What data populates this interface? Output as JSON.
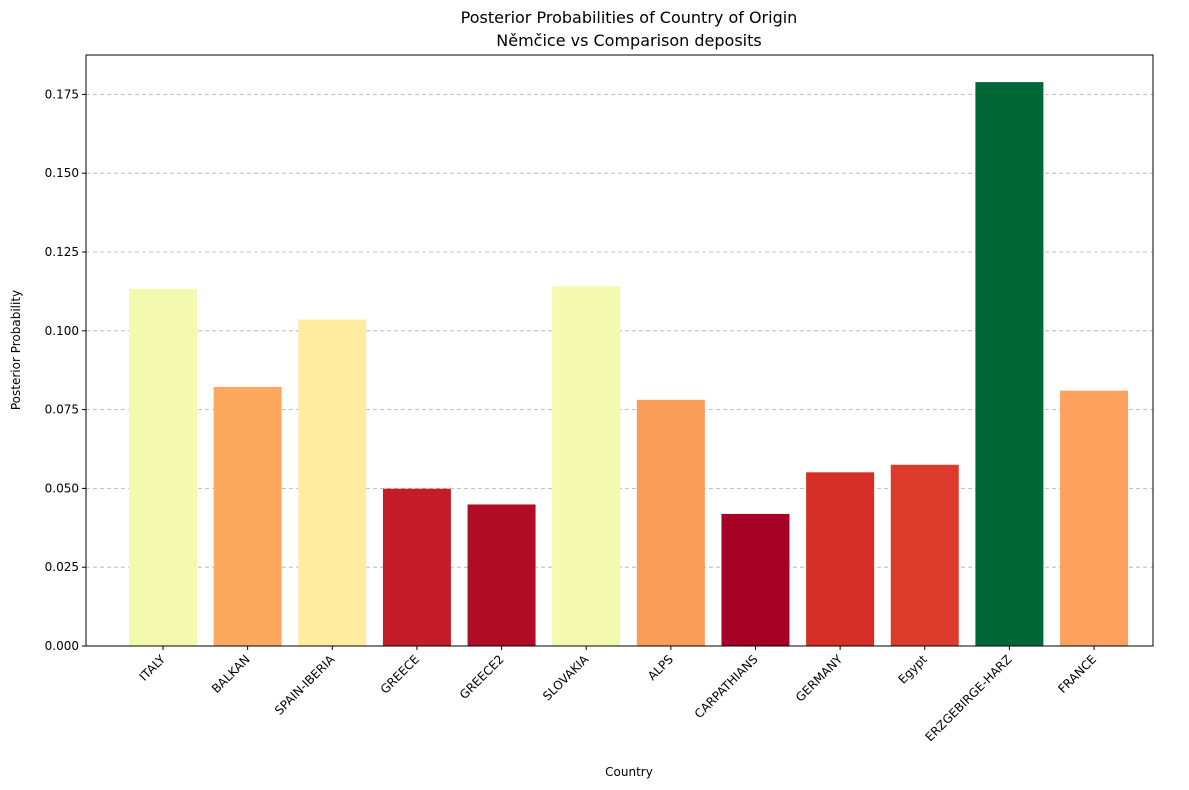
{
  "chart_data": {
    "type": "bar",
    "title": "Posterior Probabilities of Country of Origin",
    "subtitle": "Němčice vs Comparison deposits",
    "xlabel": "Country",
    "ylabel": "Posterior Probability",
    "categories": [
      "ITALY",
      "BALKAN",
      "SPAIN-IBERIA",
      "GREECE",
      "GREECE2",
      "SLOVAKIA",
      "ALPS",
      "CARPATHIANS",
      "GERMANY",
      "Egypt",
      "ERZGEBIRGE-HARZ",
      "FRANCE"
    ],
    "values": [
      0.1133,
      0.0822,
      0.1036,
      0.0499,
      0.0449,
      0.1141,
      0.0781,
      0.0419,
      0.0551,
      0.0575,
      0.1789,
      0.081
    ],
    "colors": [
      "#f3faaf",
      "#fca85e",
      "#feeda1",
      "#c41c28",
      "#b00c26",
      "#f3faaf",
      "#f99c58",
      "#a50026",
      "#d62f27",
      "#dd3c2d",
      "#006837",
      "#fca25e"
    ],
    "ylim": [
      0,
      0.1875
    ],
    "yticks": [
      "0.000",
      "0.025",
      "0.050",
      "0.075",
      "0.100",
      "0.125",
      "0.150",
      "0.175"
    ],
    "ytick_values": [
      0,
      0.025,
      0.05,
      0.075,
      0.1,
      0.125,
      0.15,
      0.175
    ],
    "grid": "y-dashed",
    "legend": "none"
  }
}
